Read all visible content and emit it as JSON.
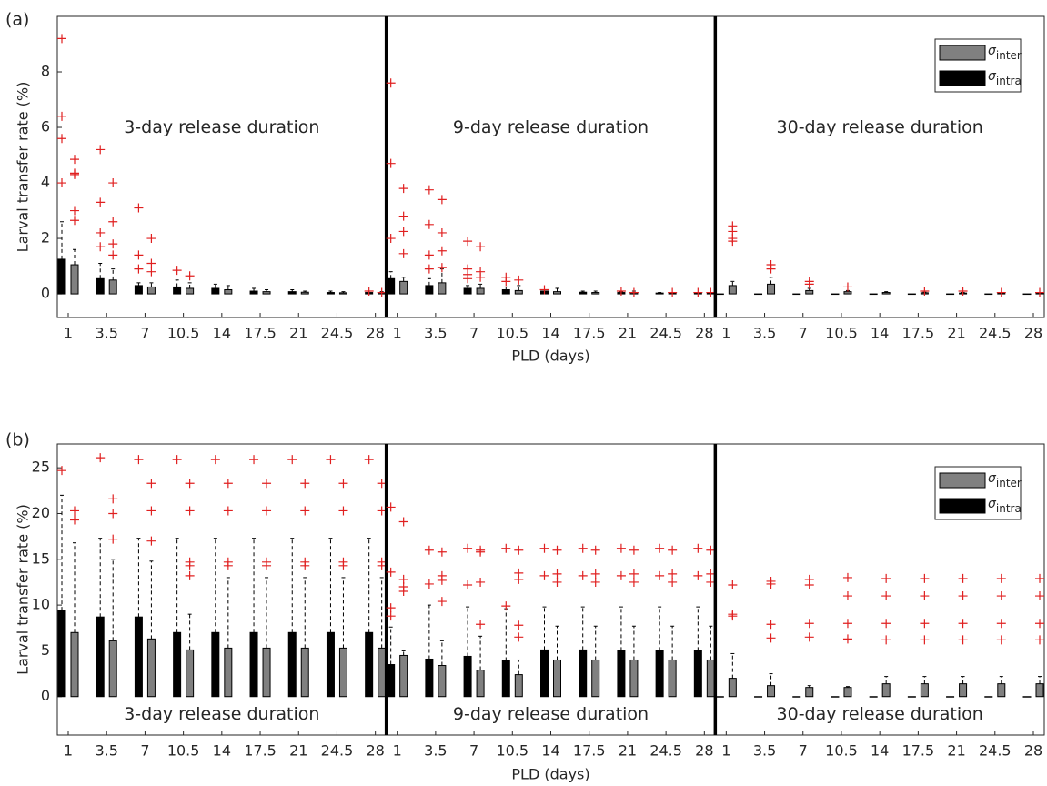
{
  "chart_data": [
    {
      "type": "box",
      "panel_label": "(a)",
      "ylabel": "Larval transfer rate (%)",
      "xlabel": "PLD (days)",
      "groups": [
        "3-day release duration",
        "9-day release duration",
        "30-day release duration"
      ],
      "categories": [
        "1",
        "3.5",
        "7",
        "10.5",
        "14",
        "17.5",
        "21",
        "24.5",
        "28"
      ],
      "ylim": [
        -0.85,
        10
      ],
      "yticks": [
        0,
        2,
        4,
        6,
        8
      ],
      "legend_symbol": "σ",
      "series": [
        {
          "name": "intra",
          "color": "#000000",
          "values": [
            1.25,
            0.55,
            0.3,
            0.25,
            0.2,
            0.1,
            0.08,
            0.05,
            0.05,
            0.55,
            0.3,
            0.2,
            0.15,
            0.1,
            0.06,
            0.05,
            0.03,
            0.03,
            0,
            0,
            0,
            0,
            0,
            0,
            0,
            0,
            0
          ],
          "whiskers": [
            2.6,
            1.1,
            0.4,
            0.5,
            0.35,
            0.2,
            0.15,
            0.1,
            0.1,
            0.8,
            0.55,
            0.3,
            0.25,
            0.15,
            0.1,
            0.08,
            0.05,
            0.05,
            0,
            0,
            0,
            0,
            0,
            0,
            0,
            0,
            0
          ],
          "outliers": [
            [
              9.2,
              6.4,
              5.6,
              4.0
            ],
            [
              5.2,
              3.3,
              2.2,
              1.7
            ],
            [
              3.1,
              1.4,
              0.9
            ],
            [
              0.85
            ],
            [],
            [],
            [],
            [],
            [
              0.1
            ],
            [
              7.6,
              4.7,
              2.0
            ],
            [
              3.75,
              2.5,
              1.4,
              0.9
            ],
            [
              1.9,
              0.9,
              0.7,
              0.55
            ],
            [
              0.6,
              0.45
            ],
            [
              0.15
            ],
            [],
            [
              0.1
            ],
            [],
            [
              0.05
            ],
            [],
            [],
            [],
            [],
            [],
            [],
            [],
            [],
            []
          ]
        },
        {
          "name": "inter",
          "color": "#808080",
          "values": [
            1.05,
            0.5,
            0.25,
            0.2,
            0.15,
            0.08,
            0.06,
            0.04,
            0.04,
            0.45,
            0.4,
            0.2,
            0.12,
            0.08,
            0.05,
            0.04,
            0.03,
            0.02,
            0.3,
            0.35,
            0.12,
            0.08,
            0.05,
            0.04,
            0.03,
            0.03,
            0.02
          ],
          "whiskers": [
            1.6,
            0.9,
            0.4,
            0.4,
            0.3,
            0.15,
            0.1,
            0.08,
            0.08,
            0.6,
            0.9,
            0.35,
            0.3,
            0.2,
            0.1,
            0.1,
            0.05,
            0.05,
            0.45,
            0.6,
            0.2,
            0.12,
            0.08,
            0.06,
            0.05,
            0.05,
            0.03
          ],
          "outliers": [
            [
              4.85,
              4.35,
              4.3,
              3.0,
              2.65
            ],
            [
              4.0,
              2.6,
              1.8,
              1.4
            ],
            [
              2.0,
              1.1,
              0.8
            ],
            [
              0.65
            ],
            [],
            [],
            [],
            [],
            [
              0.05
            ],
            [
              3.8,
              2.8,
              2.25,
              1.45
            ],
            [
              3.4,
              2.2,
              1.55,
              0.95
            ],
            [
              1.7,
              0.8,
              0.6
            ],
            [
              0.5
            ],
            [],
            [],
            [
              0.05
            ],
            [
              0.05
            ],
            [
              0.05
            ],
            [
              2.45,
              2.25,
              2.0,
              1.9
            ],
            [
              1.05,
              0.9
            ],
            [
              0.45,
              0.35
            ],
            [
              0.25
            ],
            [],
            [
              0.1
            ],
            [
              0.1
            ],
            [
              0.05
            ],
            [
              0.05
            ]
          ]
        }
      ]
    },
    {
      "type": "box",
      "panel_label": "(b)",
      "ylabel": "Larval transfer rate (%)",
      "xlabel": "PLD (days)",
      "groups": [
        "3-day release duration",
        "9-day release duration",
        "30-day release duration"
      ],
      "categories": [
        "1",
        "3.5",
        "7",
        "10.5",
        "14",
        "17.5",
        "21",
        "24.5",
        "28"
      ],
      "ylim": [
        -4.2,
        27.6
      ],
      "yticks": [
        0,
        5,
        10,
        15,
        20,
        25
      ],
      "legend_symbol": "σ",
      "series": [
        {
          "name": "intra",
          "color": "#000000",
          "values": [
            9.4,
            8.7,
            8.7,
            7.0,
            7.0,
            7.0,
            7.0,
            7.0,
            7.0,
            3.5,
            4.1,
            4.4,
            3.9,
            5.1,
            5.1,
            5.0,
            5.0,
            5.0,
            0,
            0,
            0,
            0,
            0,
            0,
            0,
            0,
            0
          ],
          "whiskers": [
            22,
            17.3,
            17.3,
            17.3,
            17.3,
            17.3,
            17.3,
            17.3,
            17.3,
            7.6,
            10.0,
            9.8,
            9.6,
            9.8,
            9.8,
            9.8,
            9.8,
            9.8,
            0,
            0,
            0,
            0,
            0,
            0,
            0,
            0,
            0
          ],
          "outliers": [
            [
              24.7
            ],
            [
              26.1
            ],
            [
              25.9
            ],
            [
              25.9
            ],
            [
              25.9
            ],
            [
              25.9
            ],
            [
              25.9
            ],
            [
              25.9
            ],
            [
              25.9
            ],
            [
              20.7,
              13.6,
              9.7,
              8.8
            ],
            [
              16.0,
              12.3
            ],
            [
              16.2,
              12.2
            ],
            [
              16.2,
              9.9
            ],
            [
              16.2,
              13.2
            ],
            [
              16.2,
              13.2
            ],
            [
              16.2,
              13.2
            ],
            [
              16.2,
              13.2
            ],
            [
              16.2,
              13.2
            ],
            [],
            [],
            [],
            [],
            [],
            [],
            [],
            [],
            []
          ]
        },
        {
          "name": "inter",
          "color": "#808080",
          "values": [
            7.0,
            6.1,
            6.3,
            5.1,
            5.3,
            5.3,
            5.3,
            5.3,
            5.3,
            4.5,
            3.4,
            2.9,
            2.4,
            4.0,
            4.0,
            4.0,
            4.0,
            4.0,
            2.0,
            1.2,
            1.0,
            1.0,
            1.4,
            1.4,
            1.4,
            1.4,
            1.4
          ],
          "whiskers": [
            16.8,
            15.0,
            14.8,
            9.0,
            13.0,
            13.0,
            13.0,
            13.0,
            13.0,
            5.0,
            6.1,
            6.6,
            4.0,
            7.7,
            7.7,
            7.7,
            7.7,
            7.7,
            4.7,
            2.5,
            1.2,
            1.1,
            2.2,
            2.2,
            2.2,
            2.2,
            2.2
          ],
          "outliers": [
            [
              20.3,
              19.3
            ],
            [
              21.6,
              20.0,
              17.2
            ],
            [
              23.3,
              20.3,
              17.0
            ],
            [
              23.3,
              20.3,
              14.7,
              14.3,
              13.2
            ],
            [
              23.3,
              20.3,
              14.7,
              14.3
            ],
            [
              23.3,
              20.3,
              14.7,
              14.3
            ],
            [
              23.3,
              20.3,
              14.7,
              14.3
            ],
            [
              23.3,
              20.3,
              14.7,
              14.3
            ],
            [
              23.3,
              20.3,
              14.7,
              14.3
            ],
            [
              19.1,
              12.8,
              12.0,
              11.5
            ],
            [
              15.8,
              13.2,
              12.7,
              10.4
            ],
            [
              16.0,
              15.8,
              12.5,
              7.9
            ],
            [
              16.0,
              13.5,
              12.8,
              7.8,
              6.5
            ],
            [
              16.0,
              13.4,
              12.5
            ],
            [
              16.0,
              13.4,
              12.5
            ],
            [
              16.0,
              13.4,
              12.5
            ],
            [
              16.0,
              13.4,
              12.5
            ],
            [
              16.0,
              13.4,
              12.5
            ],
            [
              12.2,
              9.0,
              8.8
            ],
            [
              12.6,
              12.3,
              7.9,
              6.4
            ],
            [
              12.8,
              12.2,
              8.0,
              6.5
            ],
            [
              13.0,
              11.0,
              8.0,
              6.3
            ],
            [
              12.9,
              11.0,
              8.0,
              6.2
            ],
            [
              12.9,
              11.0,
              8.0,
              6.2
            ],
            [
              12.9,
              11.0,
              8.0,
              6.2
            ],
            [
              12.9,
              11.0,
              8.0,
              6.2
            ],
            [
              12.9,
              11.0,
              8.0,
              6.2
            ]
          ]
        }
      ]
    }
  ]
}
